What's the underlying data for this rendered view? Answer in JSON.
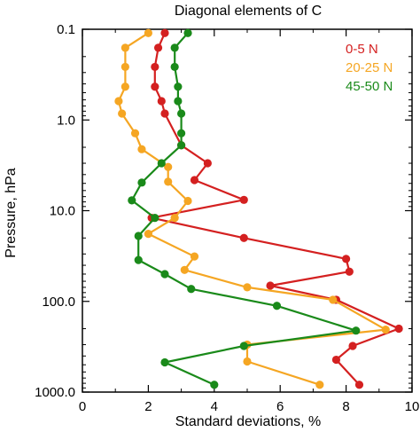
{
  "chart_data": {
    "type": "line",
    "title": "Diagonal elements of C",
    "xlabel": "Standard deviations, %",
    "ylabel": "Pressure, hPa",
    "xlim": [
      0,
      10
    ],
    "ylim": [
      1000,
      0.1
    ],
    "y_scale": "log-reversed",
    "x_ticks": [
      0,
      2,
      4,
      6,
      8,
      10
    ],
    "x_tick_labels": [
      "0",
      "2",
      "4",
      "6",
      "8",
      "10"
    ],
    "y_ticks": [
      0.1,
      1,
      10,
      100,
      1000
    ],
    "y_tick_labels": [
      "0.1",
      "1.0",
      "10.0",
      "100.0",
      "1000.0"
    ],
    "grid": false,
    "legend_position": "top-right",
    "series": [
      {
        "name": "0-5 N",
        "color": "#d42020",
        "x": [
          2.5,
          2.3,
          2.2,
          2.2,
          2.4,
          2.5,
          3.0,
          3.8,
          3.4,
          4.9,
          2.1,
          4.9,
          8.0,
          8.1,
          5.7,
          7.7,
          9.6,
          8.2,
          7.7,
          8.4
        ],
        "y": [
          0.11,
          0.16,
          0.26,
          0.43,
          0.62,
          0.85,
          1.9,
          3.0,
          4.6,
          7.6,
          12,
          20,
          34,
          47,
          67,
          96,
          200,
          310,
          440,
          830
        ]
      },
      {
        "name": "20-25 N",
        "color": "#f5a623",
        "x": [
          2.0,
          1.3,
          1.3,
          1.3,
          1.1,
          1.2,
          1.6,
          1.8,
          2.6,
          2.6,
          3.2,
          2.8,
          2.0,
          3.4,
          3.1,
          5.0,
          7.6,
          9.2,
          5.0,
          5.0,
          7.2
        ],
        "y": [
          0.11,
          0.16,
          0.26,
          0.43,
          0.62,
          0.85,
          1.4,
          2.1,
          3.3,
          4.8,
          7.8,
          12,
          18,
          32,
          45,
          70,
          96,
          205,
          300,
          460,
          830
        ]
      },
      {
        "name": "45-50 N",
        "color": "#1a8a1a",
        "x": [
          3.2,
          2.8,
          2.8,
          2.9,
          2.9,
          3.0,
          3.0,
          3.0,
          2.4,
          1.8,
          1.5,
          2.2,
          1.7,
          1.7,
          2.5,
          3.3,
          5.9,
          8.3,
          4.9,
          2.5,
          4.0
        ],
        "y": [
          0.11,
          0.16,
          0.26,
          0.43,
          0.62,
          0.85,
          1.4,
          1.9,
          3.0,
          4.9,
          7.7,
          12,
          19,
          35,
          50,
          73,
          112,
          210,
          310,
          470,
          830
        ]
      }
    ]
  }
}
